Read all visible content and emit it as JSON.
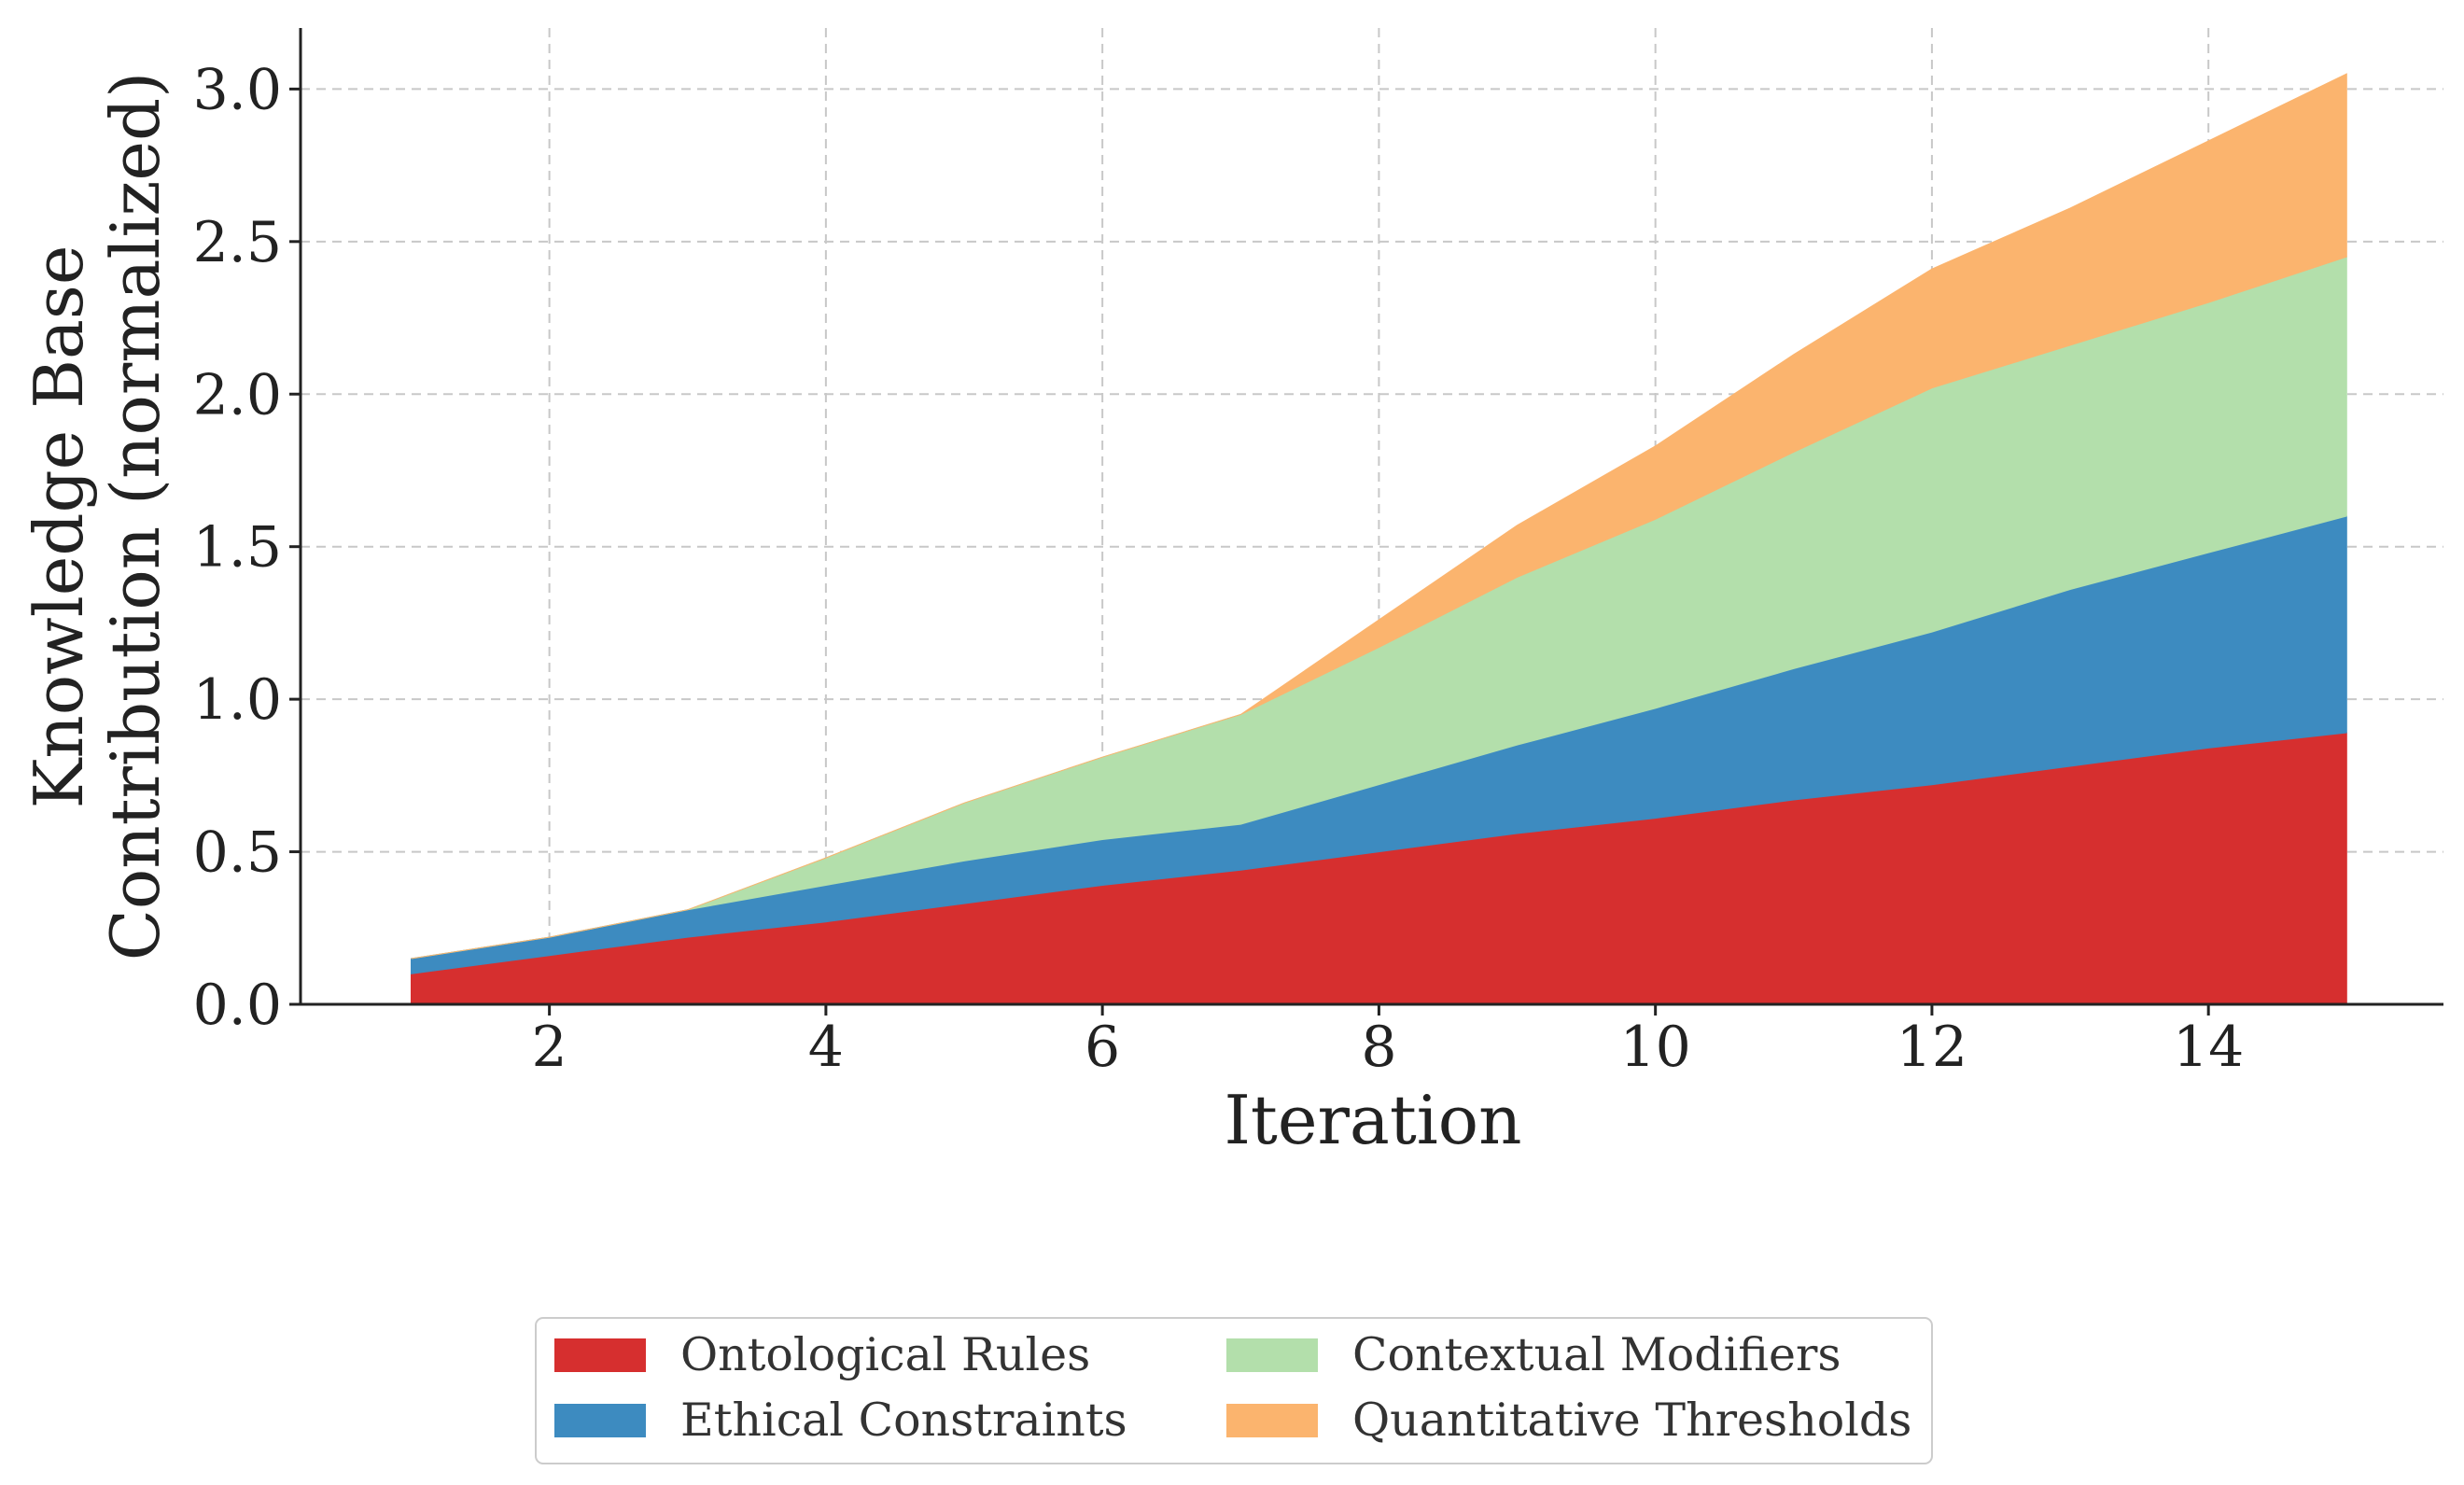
{
  "chart_data": {
    "type": "area",
    "stacked": true,
    "title": "",
    "xlabel": "Iteration",
    "ylabel_lines": [
      "Knowledge Base",
      "Contribution (normalized)"
    ],
    "xlim": [
      0.2,
      15.7
    ],
    "ylim": [
      0,
      3.2
    ],
    "xticks": [
      2,
      4,
      6,
      8,
      10,
      12,
      14
    ],
    "yticks": [
      0.0,
      0.5,
      1.0,
      1.5,
      2.0,
      2.5,
      3.0
    ],
    "ytick_labels": [
      "0.0",
      "0.5",
      "1.0",
      "1.5",
      "2.0",
      "2.5",
      "3.0"
    ],
    "grid": true,
    "legend_position": "bottom-center",
    "x": [
      1,
      2,
      3,
      4,
      5,
      6,
      7,
      8,
      9,
      10,
      11,
      12,
      13,
      14,
      15
    ],
    "series": [
      {
        "name": "Ontological Rules",
        "color": "#d62f2f",
        "values": [
          0.1,
          0.16,
          0.22,
          0.27,
          0.33,
          0.39,
          0.44,
          0.5,
          0.56,
          0.61,
          0.67,
          0.72,
          0.78,
          0.84,
          0.89
        ]
      },
      {
        "name": "Ethical Constraints",
        "color": "#3d8bc0",
        "values": [
          0.05,
          0.06,
          0.09,
          0.12,
          0.14,
          0.15,
          0.15,
          0.22,
          0.29,
          0.36,
          0.43,
          0.5,
          0.58,
          0.64,
          0.71
        ]
      },
      {
        "name": "Contextual Modifiers",
        "color": "#b3dfab",
        "values": [
          0.0,
          0.0,
          0.0,
          0.09,
          0.19,
          0.27,
          0.36,
          0.45,
          0.55,
          0.62,
          0.71,
          0.8,
          0.8,
          0.82,
          0.85
        ]
      },
      {
        "name": "Quantitative Thresholds",
        "color": "#fbb46e",
        "values": [
          0.0,
          0.0,
          0.0,
          0.0,
          0.0,
          0.0,
          0.0,
          0.09,
          0.17,
          0.24,
          0.32,
          0.39,
          0.45,
          0.53,
          0.6
        ]
      }
    ]
  }
}
